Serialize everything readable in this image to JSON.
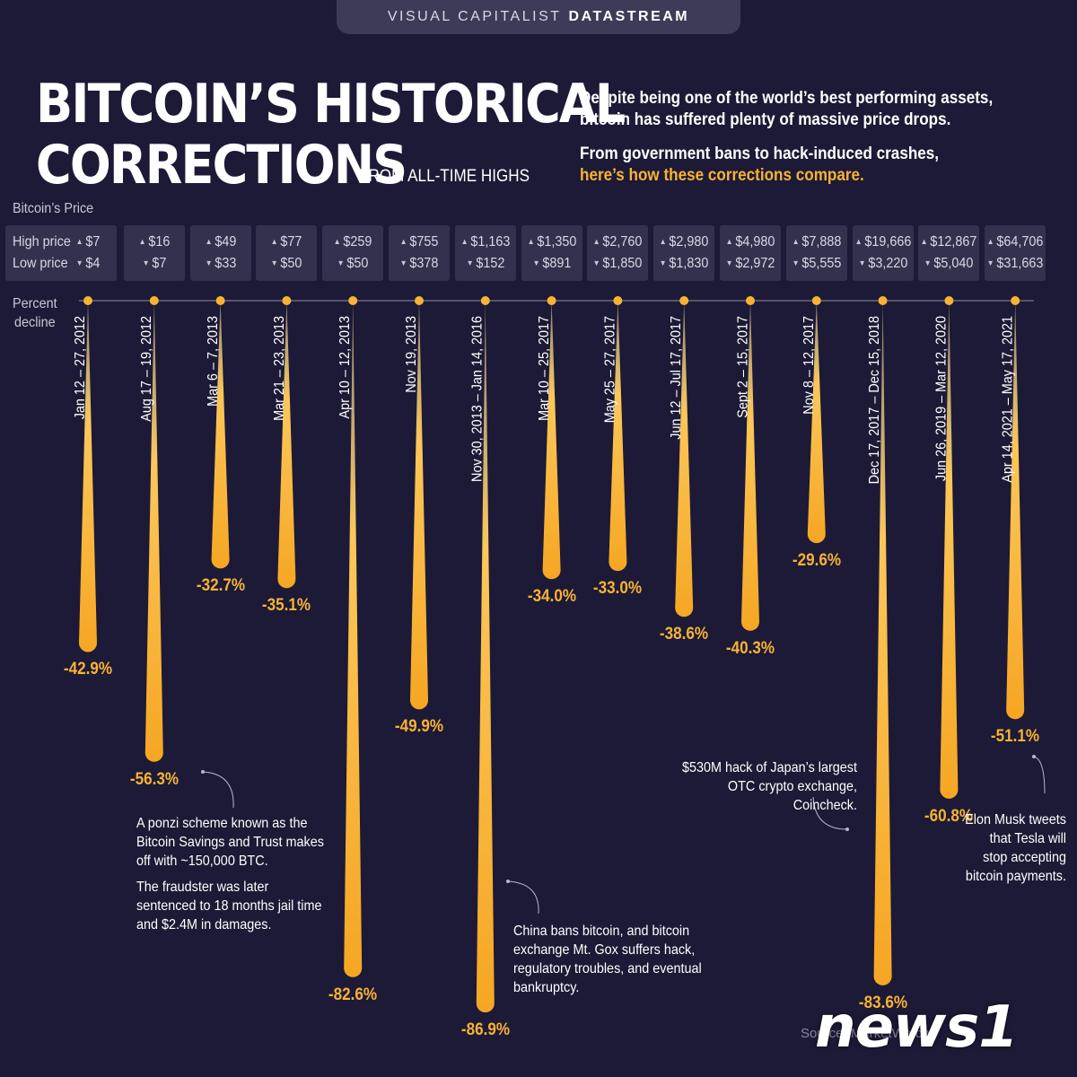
{
  "header": {
    "brand_prefix": "VISUAL CAPITALIST",
    "brand_suffix": "DATASTREAM"
  },
  "title_line1": "BITCOIN’S HISTORICAL",
  "title_line2": "CORRECTIONS",
  "subtitle": "FROM ALL-TIME HIGHS",
  "intro": {
    "p1": "Despite being one of the world’s best performing assets, bitcoin has suffered plenty of massive price drops.",
    "p2a": "From government bans to hack-induced crashes,",
    "p2b": "here’s how these corrections compare."
  },
  "price_section_label": "Bitcoin’s Price",
  "row_labels": {
    "high": "High price",
    "low": "Low price"
  },
  "percent_label_line1": "Percent",
  "percent_label_line2": "decline",
  "colors": {
    "background": "#1c1a36",
    "accent": "#f9b233",
    "box": "#33314e"
  },
  "chart_data": {
    "type": "bar",
    "orientation": "downward",
    "categories": [
      "Jan 12 – 27, 2012",
      "Aug 17 – 19, 2012",
      "Mar 6 – 7, 2013",
      "Mar 21 – 23, 2013",
      "Apr 10 – 12, 2013",
      "Nov 19, 2013",
      "Nov 30, 2013 – Jan 14, 2016",
      "Mar 10 – 25, 2017",
      "May 25 – 27, 2017",
      "Jun 12 – Jul 17, 2017",
      "Sept 2 – 15, 2017",
      "Nov 8 – 12, 2017",
      "Dec 17, 2017 – Dec 15, 2018",
      "Jun 26, 2019 – Mar 12, 2020",
      "Apr 14,  2021 – May 17, 2021"
    ],
    "values": [
      -42.9,
      -56.3,
      -32.7,
      -35.1,
      -82.6,
      -49.9,
      -86.9,
      -34.0,
      -33.0,
      -38.6,
      -40.3,
      -29.6,
      -83.6,
      -60.8,
      -51.1
    ],
    "value_labels": [
      "-42.9%",
      "-56.3%",
      "-32.7%",
      "-35.1%",
      "-82.6%",
      "-49.9%",
      "-86.9%",
      "-34.0%",
      "-33.0%",
      "-38.6%",
      "-40.3%",
      "-29.6%",
      "-83.6%",
      "-60.8%",
      "-51.1%"
    ],
    "high_price": [
      "$7",
      "$16",
      "$49",
      "$77",
      "$259",
      "$755",
      "$1,163",
      "$1,350",
      "$2,760",
      "$2,980",
      "$4,980",
      "$7,888",
      "$19,666",
      "$12,867",
      "$64,706"
    ],
    "low_price": [
      "$4",
      "$7",
      "$33",
      "$50",
      "$50",
      "$378",
      "$152",
      "$891",
      "$1,850",
      "$1,830",
      "$2,972",
      "$5,555",
      "$3,220",
      "$5,040",
      "$31,663"
    ],
    "ylim": [
      -100,
      0
    ],
    "ylabel": "Percent decline",
    "grid": false
  },
  "annotations": {
    "ponzi_1": "A ponzi scheme known as the Bitcoin Savings and Trust makes off with ~150,000 BTC.",
    "ponzi_2": "The fraudster was later sentenced to 18 months jail time and $2.4M in damages.",
    "china": "China bans bitcoin, and bitcoin exchange Mt. Gox suffers hack, regulatory troubles, and eventual bankruptcy.",
    "coincheck": "$530M hack of Japan’s largest OTC crypto exchange, Coincheck.",
    "musk": "Elon Musk tweets that Tesla will stop accepting bitcoin payments."
  },
  "source": "Source: MarketWatch",
  "watermark": "news1"
}
